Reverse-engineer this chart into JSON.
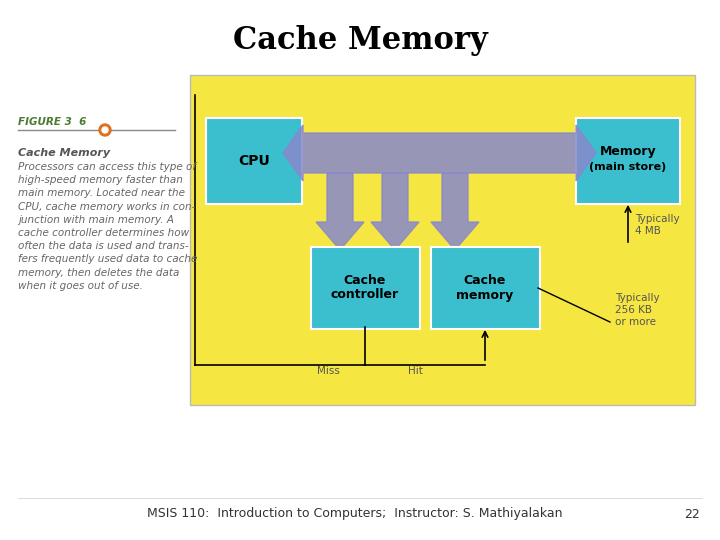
{
  "title": "Cache Memory",
  "footer": "MSIS 110:  Introduction to Computers;  Instructor: S. Mathiyalakan",
  "page_number": "22",
  "figure_label": "FIGURE 3  6",
  "figure_label_color": "#4a7c2f",
  "bg_color": "#ffffff",
  "diagram_bg": "#f5e642",
  "box_color": "#3bbfcf",
  "arrow_color": "#8888cc",
  "caption_title": "Cache Memory",
  "caption_text": "Processors can access this type of\nhigh-speed memory faster than\nmain memory. Located near the\nCPU, cache memory works in con-\njunction with main memory. A\ncache controller determines how\noften the data is used and trans-\nfers frequently used data to cache\nmemory, then deletes the data\nwhen it goes out of use.",
  "title_fontsize": 22,
  "footer_fontsize": 9,
  "caption_fontsize": 7.5
}
